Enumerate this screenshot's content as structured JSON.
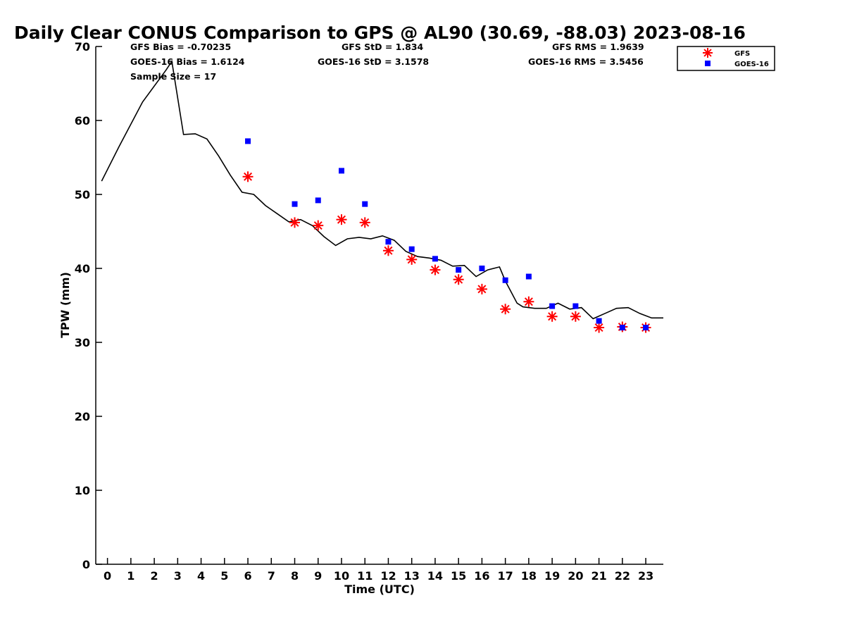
{
  "chart_data": {
    "type": "scatter",
    "title": "Daily Clear CONUS Comparison to GPS @ AL90 (30.69, -88.03) 2023-08-16",
    "xlabel": "Time (UTC)",
    "ylabel": "TPW (mm)",
    "xlim": [
      -0.5,
      23.75
    ],
    "ylim": [
      0,
      70
    ],
    "x_ticks": [
      0,
      1,
      2,
      3,
      4,
      5,
      6,
      7,
      8,
      9,
      10,
      11,
      12,
      13,
      14,
      15,
      16,
      17,
      18,
      19,
      20,
      21,
      22,
      23
    ],
    "y_ticks": [
      0,
      10,
      20,
      30,
      40,
      50,
      60,
      70
    ],
    "grid": false,
    "legend_position": "top-right, outside plot",
    "stats": {
      "gfs_bias": "GFS Bias = -0.70235",
      "goes_bias": "GOES-16 Bias = 1.6124",
      "sample_size": "Sample Size = 17",
      "gfs_std": "GFS StD = 1.834",
      "goes_std": "GOES-16 StD = 3.1578",
      "gfs_rms": "GFS RMS = 1.9639",
      "goes_rms": "GOES-16 RMS = 3.5456"
    },
    "series": [
      {
        "type": "line",
        "color": "#000000",
        "x": [
          -0.25,
          0.5,
          1.5,
          2.5,
          2.75,
          3.25,
          3.75,
          4.25,
          4.75,
          5.25,
          5.75,
          6.25,
          6.75,
          7.25,
          7.75,
          8.25,
          8.75,
          9.25,
          9.75,
          10.25,
          10.75,
          11.25,
          11.75,
          12.25,
          12.75,
          13.25,
          13.75,
          14.25,
          14.75,
          15.25,
          15.75,
          16.25,
          16.75,
          17.0,
          17.5,
          17.75,
          18.25,
          18.75,
          19.25,
          19.75,
          20.25,
          20.75,
          21.25,
          21.75,
          22.25,
          22.75,
          23.25,
          23.75
        ],
        "y": [
          51.8,
          56.5,
          62.5,
          66.8,
          68.0,
          58.1,
          58.2,
          57.5,
          55.2,
          52.6,
          50.3,
          50.0,
          48.5,
          47.4,
          46.3,
          46.6,
          45.8,
          44.3,
          43.1,
          44.0,
          44.2,
          44.0,
          44.4,
          43.8,
          42.3,
          41.6,
          41.4,
          41.1,
          40.3,
          40.4,
          38.9,
          39.8,
          40.2,
          38.3,
          35.3,
          34.8,
          34.6,
          34.6,
          35.3,
          34.5,
          34.7,
          33.2,
          33.9,
          34.6,
          34.7,
          33.9,
          33.3,
          33.3
        ]
      },
      {
        "name": "GFS",
        "marker": "asterisk",
        "color": "#ff0000",
        "x": [
          6,
          8,
          9,
          10,
          11,
          12,
          13,
          14,
          15,
          16,
          17,
          18,
          19,
          20,
          21,
          22,
          23
        ],
        "y": [
          52.4,
          46.2,
          45.8,
          46.6,
          46.2,
          42.4,
          41.2,
          39.8,
          38.5,
          37.2,
          34.5,
          35.5,
          33.5,
          33.5,
          32.0,
          32.1,
          32.0
        ]
      },
      {
        "name": "GOES-16",
        "marker": "square",
        "color": "#0000ff",
        "x": [
          6,
          8,
          9,
          10,
          11,
          12,
          13,
          14,
          15,
          16,
          17,
          18,
          19,
          20,
          21,
          22,
          23
        ],
        "y": [
          57.2,
          48.7,
          49.2,
          53.2,
          48.7,
          43.6,
          42.6,
          41.3,
          39.8,
          40.0,
          38.4,
          38.9,
          34.9,
          34.9,
          32.9,
          32.0,
          32.0
        ]
      }
    ]
  }
}
